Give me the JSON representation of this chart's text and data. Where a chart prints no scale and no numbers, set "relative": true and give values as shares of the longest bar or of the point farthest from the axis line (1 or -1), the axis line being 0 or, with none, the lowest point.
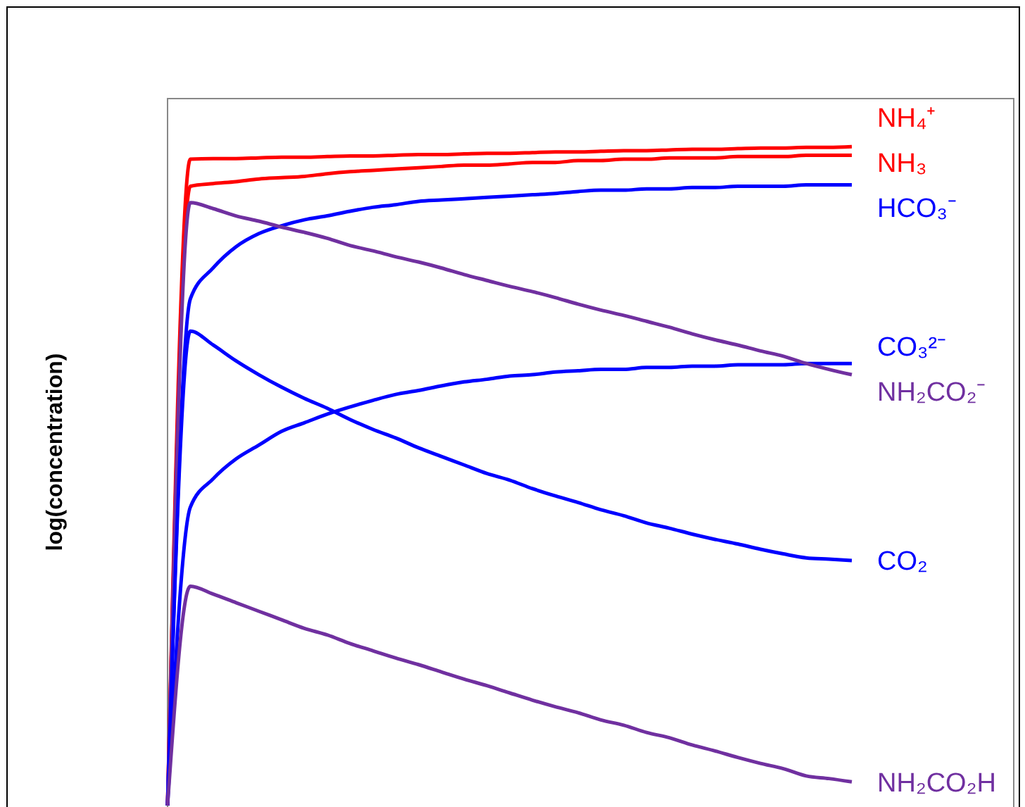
{
  "chart_data": {
    "type": "line",
    "relative": true,
    "ylabel": "log(concentration)",
    "marker": "none",
    "line_style": "solid",
    "categories": [
      null,
      null,
      null,
      null,
      null,
      null,
      null,
      null,
      null,
      null,
      null,
      null,
      null,
      null,
      null,
      null,
      null,
      null,
      null,
      null,
      null,
      null,
      null,
      null,
      null,
      null,
      null,
      null,
      null,
      null,
      null
    ],
    "series": [
      {
        "name": "NH₄⁺",
        "color": "#ff0000",
        "values": [
          0,
          0.981,
          0.982,
          0.982,
          0.983,
          0.984,
          0.984,
          0.985,
          0.986,
          0.986,
          0.987,
          0.988,
          0.988,
          0.989,
          0.99,
          0.99,
          0.991,
          0.992,
          0.992,
          0.993,
          0.994,
          0.994,
          0.995,
          0.996,
          0.996,
          0.997,
          0.998,
          0.998,
          0.999,
          0.999,
          1.0
        ]
      },
      {
        "name": "NH₃",
        "color": "#ff0000",
        "values": [
          0,
          0.94,
          0.944,
          0.947,
          0.951,
          0.953,
          0.955,
          0.959,
          0.962,
          0.964,
          0.966,
          0.968,
          0.97,
          0.972,
          0.972,
          0.974,
          0.976,
          0.976,
          0.979,
          0.979,
          0.981,
          0.981,
          0.983,
          0.983,
          0.983,
          0.985,
          0.985,
          0.985,
          0.987,
          0.987,
          0.987
        ]
      },
      {
        "name": "HCO₃⁻",
        "color": "#0000ff",
        "values": [
          0,
          0.769,
          0.816,
          0.848,
          0.868,
          0.88,
          0.889,
          0.895,
          0.902,
          0.908,
          0.912,
          0.917,
          0.919,
          0.921,
          0.923,
          0.925,
          0.927,
          0.929,
          0.932,
          0.934,
          0.934,
          0.936,
          0.936,
          0.938,
          0.938,
          0.94,
          0.94,
          0.94,
          0.942,
          0.942,
          0.942
        ]
      },
      {
        "name": "CO₃²⁻",
        "color": "#0000ff",
        "values": [
          0,
          0.453,
          0.496,
          0.526,
          0.547,
          0.568,
          0.581,
          0.594,
          0.605,
          0.615,
          0.624,
          0.63,
          0.637,
          0.643,
          0.647,
          0.652,
          0.654,
          0.658,
          0.66,
          0.662,
          0.662,
          0.665,
          0.665,
          0.667,
          0.667,
          0.669,
          0.669,
          0.669,
          0.671,
          0.671,
          0.671
        ]
      },
      {
        "name": "NH₂CO₂⁻",
        "color": "#7030a0",
        "values": [
          0,
          0.915,
          0.906,
          0.895,
          0.887,
          0.878,
          0.87,
          0.861,
          0.85,
          0.842,
          0.833,
          0.825,
          0.816,
          0.806,
          0.797,
          0.788,
          0.78,
          0.771,
          0.761,
          0.752,
          0.744,
          0.735,
          0.726,
          0.716,
          0.707,
          0.699,
          0.69,
          0.682,
          0.671,
          0.662,
          0.654
        ]
      },
      {
        "name": "CO₂",
        "color": "#0000ff",
        "values": [
          0,
          0.72,
          0.699,
          0.675,
          0.654,
          0.635,
          0.618,
          0.603,
          0.586,
          0.571,
          0.558,
          0.543,
          0.53,
          0.517,
          0.504,
          0.494,
          0.481,
          0.47,
          0.46,
          0.449,
          0.44,
          0.429,
          0.421,
          0.412,
          0.404,
          0.397,
          0.389,
          0.382,
          0.376,
          0.374,
          0.372
        ]
      },
      {
        "name": "NH₂CO₂H",
        "color": "#7030a0",
        "values": [
          0,
          0.333,
          0.321,
          0.308,
          0.295,
          0.282,
          0.269,
          0.259,
          0.246,
          0.235,
          0.224,
          0.214,
          0.203,
          0.192,
          0.182,
          0.171,
          0.16,
          0.15,
          0.141,
          0.13,
          0.122,
          0.111,
          0.103,
          0.092,
          0.083,
          0.073,
          0.064,
          0.056,
          0.045,
          0.041,
          0.036
        ]
      }
    ]
  }
}
